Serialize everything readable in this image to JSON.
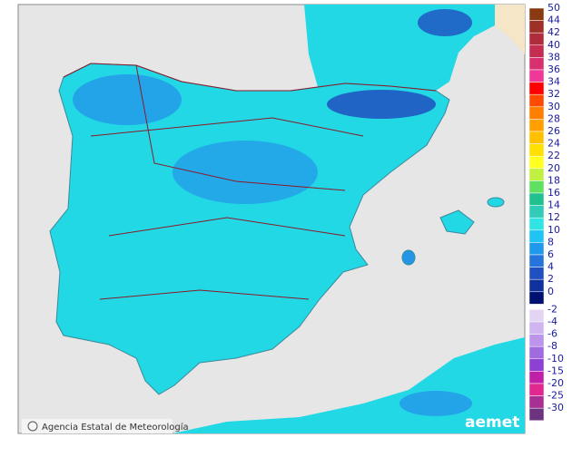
{
  "map": {
    "credit": "Agencia Estatal de Meteorología",
    "logo": "aemet",
    "legend": [
      {
        "label": "50",
        "color": "#8a3a10"
      },
      {
        "label": "44",
        "color": "#9e3028"
      },
      {
        "label": "42",
        "color": "#b02c3c"
      },
      {
        "label": "40",
        "color": "#c42c52"
      },
      {
        "label": "38",
        "color": "#d8306e"
      },
      {
        "label": "36",
        "color": "#f03898"
      },
      {
        "label": "34",
        "color": "#ff0000"
      },
      {
        "label": "32",
        "color": "#ff4a00"
      },
      {
        "label": "30",
        "color": "#ff7e00"
      },
      {
        "label": "28",
        "color": "#ffa000"
      },
      {
        "label": "26",
        "color": "#ffc000"
      },
      {
        "label": "24",
        "color": "#ffe000"
      },
      {
        "label": "22",
        "color": "#ffff20"
      },
      {
        "label": "20",
        "color": "#c0f040"
      },
      {
        "label": "18",
        "color": "#60e060"
      },
      {
        "label": "16",
        "color": "#20c090"
      },
      {
        "label": "14",
        "color": "#30ccb8"
      },
      {
        "label": "12",
        "color": "#30e4e4"
      },
      {
        "label": "10",
        "color": "#20c4f4"
      },
      {
        "label": "8",
        "color": "#2098ec"
      },
      {
        "label": "6",
        "color": "#2474dc"
      },
      {
        "label": "4",
        "color": "#2050c0"
      },
      {
        "label": "2",
        "color": "#10309c"
      },
      {
        "label": "0",
        "color": "#001070"
      },
      {
        "label": "-2",
        "color": "#e4d4f4"
      },
      {
        "label": "-4",
        "color": "#d0b4f0"
      },
      {
        "label": "-6",
        "color": "#bc94ec"
      },
      {
        "label": "-8",
        "color": "#a06ae0"
      },
      {
        "label": "-10",
        "color": "#8c40d4"
      },
      {
        "label": "-15",
        "color": "#c020a8"
      },
      {
        "label": "-20",
        "color": "#e02890"
      },
      {
        "label": "-25",
        "color": "#a83094"
      },
      {
        "label": "-30",
        "color": "#6c3480"
      }
    ]
  }
}
